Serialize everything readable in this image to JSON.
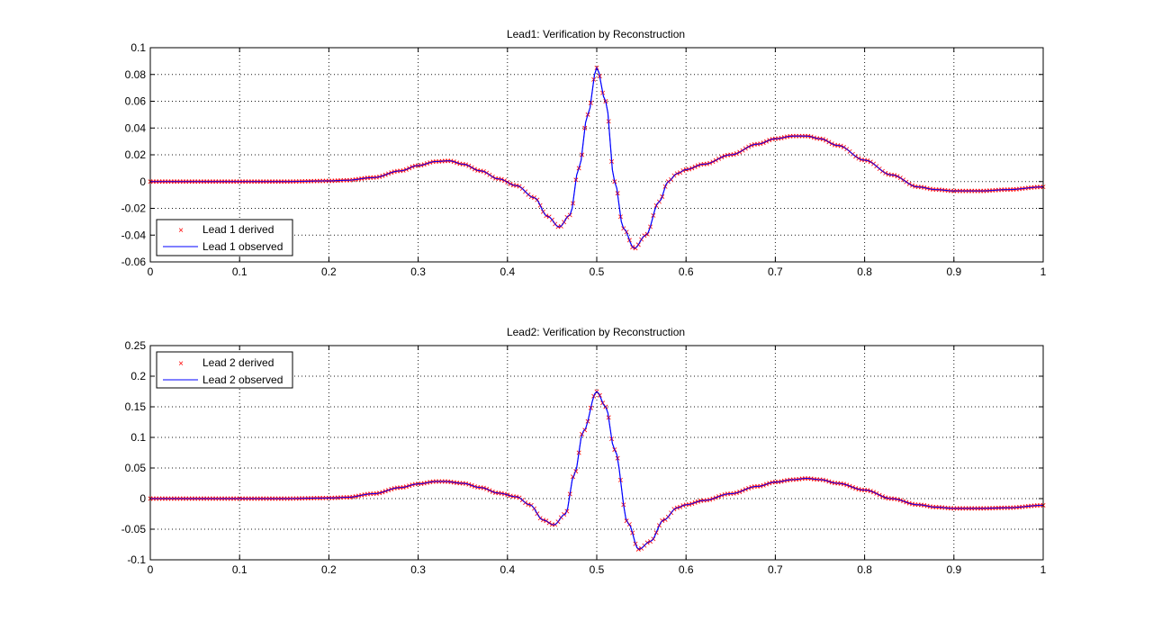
{
  "chart_data": [
    {
      "type": "line",
      "title": "Lead1: Verification by Reconstruction",
      "xlim": [
        0,
        1
      ],
      "ylim": [
        -0.06,
        0.1
      ],
      "xticks": [
        0,
        0.1,
        0.2,
        0.3,
        0.4,
        0.5,
        0.6,
        0.7,
        0.8,
        0.9,
        1
      ],
      "yticks": [
        -0.06,
        -0.04,
        -0.02,
        0,
        0.02,
        0.04,
        0.06,
        0.08,
        0.1
      ],
      "xtick_labels": [
        "0",
        "0.1",
        "0.2",
        "0.3",
        "0.4",
        "0.5",
        "0.6",
        "0.7",
        "0.8",
        "0.9",
        "1"
      ],
      "ytick_labels": [
        "-0.06",
        "-0.04",
        "-0.02",
        "0",
        "0.02",
        "0.04",
        "0.06",
        "0.08",
        "0.1"
      ],
      "grid": true,
      "legend_position": "bottom-left",
      "x": [
        0,
        0.05,
        0.1,
        0.15,
        0.2,
        0.22,
        0.25,
        0.28,
        0.3,
        0.32,
        0.335,
        0.35,
        0.37,
        0.39,
        0.41,
        0.43,
        0.445,
        0.458,
        0.47,
        0.48,
        0.49,
        0.5,
        0.51,
        0.52,
        0.53,
        0.542,
        0.555,
        0.57,
        0.58,
        0.59,
        0.6,
        0.62,
        0.65,
        0.68,
        0.7,
        0.72,
        0.735,
        0.75,
        0.77,
        0.8,
        0.83,
        0.86,
        0.88,
        0.9,
        0.93,
        0.96,
        1.0
      ],
      "series": [
        {
          "name": "Lead 1 observed",
          "values": [
            0,
            0,
            0,
            0,
            0.0005,
            0.001,
            0.003,
            0.008,
            0.012,
            0.015,
            0.0155,
            0.013,
            0.008,
            0.002,
            -0.003,
            -0.012,
            -0.026,
            -0.034,
            -0.025,
            0.01,
            0.05,
            0.085,
            0.06,
            0.0,
            -0.035,
            -0.05,
            -0.04,
            -0.015,
            0.0,
            0.006,
            0.009,
            0.013,
            0.02,
            0.028,
            0.032,
            0.034,
            0.034,
            0.032,
            0.027,
            0.016,
            0.005,
            -0.004,
            -0.006,
            -0.007,
            -0.007,
            -0.006,
            -0.004
          ]
        },
        {
          "name": "Lead 1 derived",
          "values": [
            0,
            0,
            0,
            0,
            0.0005,
            0.001,
            0.003,
            0.008,
            0.012,
            0.015,
            0.0155,
            0.013,
            0.008,
            0.002,
            -0.003,
            -0.012,
            -0.026,
            -0.034,
            -0.025,
            0.01,
            0.05,
            0.085,
            0.06,
            0.0,
            -0.035,
            -0.05,
            -0.04,
            -0.015,
            0.0,
            0.006,
            0.009,
            0.013,
            0.02,
            0.028,
            0.032,
            0.034,
            0.034,
            0.032,
            0.027,
            0.016,
            0.005,
            -0.004,
            -0.006,
            -0.007,
            -0.007,
            -0.006,
            -0.004
          ]
        }
      ]
    },
    {
      "type": "line",
      "title": "Lead2: Verification by Reconstruction",
      "xlim": [
        0,
        1
      ],
      "ylim": [
        -0.1,
        0.25
      ],
      "xticks": [
        0,
        0.1,
        0.2,
        0.3,
        0.4,
        0.5,
        0.6,
        0.7,
        0.8,
        0.9,
        1
      ],
      "yticks": [
        -0.1,
        -0.05,
        0,
        0.05,
        0.1,
        0.15,
        0.2,
        0.25
      ],
      "xtick_labels": [
        "0",
        "0.1",
        "0.2",
        "0.3",
        "0.4",
        "0.5",
        "0.6",
        "0.7",
        "0.8",
        "0.9",
        "1"
      ],
      "ytick_labels": [
        "-0.1",
        "-0.05",
        "0",
        "0.05",
        "0.1",
        "0.15",
        "0.2",
        "0.25"
      ],
      "grid": true,
      "legend_position": "top-left",
      "x": [
        0,
        0.05,
        0.1,
        0.15,
        0.2,
        0.22,
        0.25,
        0.28,
        0.3,
        0.32,
        0.33,
        0.35,
        0.37,
        0.39,
        0.41,
        0.425,
        0.44,
        0.452,
        0.465,
        0.475,
        0.485,
        0.5,
        0.51,
        0.52,
        0.535,
        0.547,
        0.56,
        0.575,
        0.59,
        0.6,
        0.62,
        0.65,
        0.68,
        0.7,
        0.72,
        0.735,
        0.75,
        0.77,
        0.8,
        0.83,
        0.86,
        0.88,
        0.9,
        0.93,
        0.96,
        1.0
      ],
      "series": [
        {
          "name": "Lead 2 observed",
          "values": [
            0,
            0,
            0,
            0,
            0.001,
            0.002,
            0.008,
            0.018,
            0.024,
            0.028,
            0.028,
            0.025,
            0.018,
            0.009,
            0.003,
            -0.01,
            -0.035,
            -0.043,
            -0.025,
            0.04,
            0.11,
            0.175,
            0.15,
            0.08,
            -0.04,
            -0.083,
            -0.07,
            -0.035,
            -0.015,
            -0.01,
            -0.003,
            0.008,
            0.02,
            0.027,
            0.031,
            0.033,
            0.031,
            0.025,
            0.014,
            0.0,
            -0.01,
            -0.014,
            -0.016,
            -0.016,
            -0.015,
            -0.011
          ]
        },
        {
          "name": "Lead 2 derived",
          "values": [
            0,
            0,
            0,
            0,
            0.001,
            0.002,
            0.008,
            0.018,
            0.024,
            0.028,
            0.028,
            0.025,
            0.018,
            0.009,
            0.003,
            -0.01,
            -0.035,
            -0.043,
            -0.025,
            0.04,
            0.11,
            0.175,
            0.15,
            0.08,
            -0.04,
            -0.083,
            -0.07,
            -0.035,
            -0.015,
            -0.01,
            -0.003,
            0.008,
            0.02,
            0.027,
            0.031,
            0.033,
            0.031,
            0.025,
            0.014,
            0.0,
            -0.01,
            -0.014,
            -0.016,
            -0.016,
            -0.015,
            -0.011
          ]
        }
      ]
    }
  ],
  "colors": {
    "observed": "#0000ff",
    "derived": "#ff0000",
    "axis": "#000000",
    "background": "#ffffff"
  }
}
